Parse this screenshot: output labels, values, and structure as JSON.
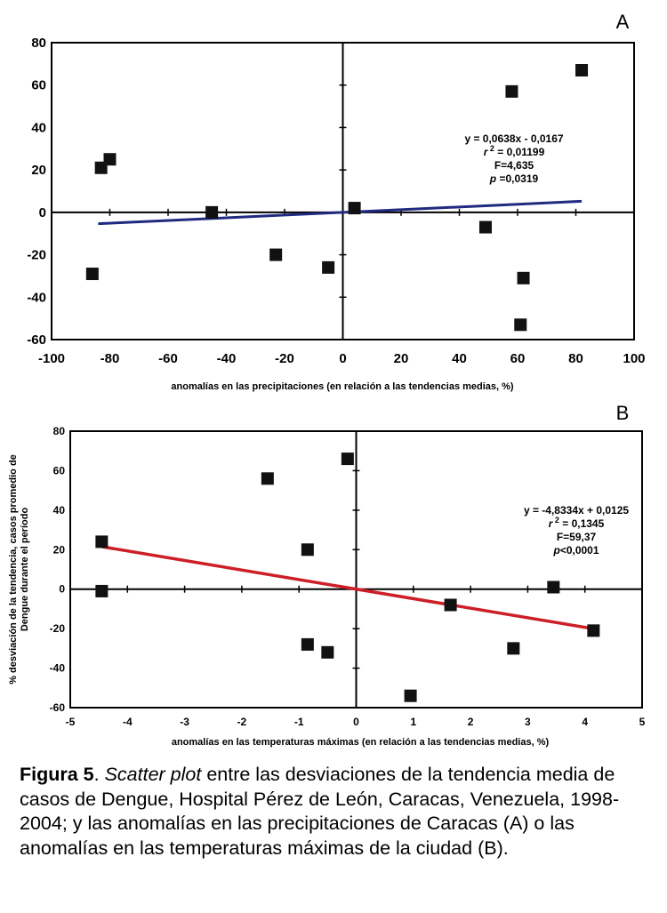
{
  "chart_data": [
    {
      "type": "scatter",
      "panel_label": "A",
      "xlabel": "anomalías en las precipitaciones (en relación a las tendencias medias, %)",
      "ylabel": "",
      "xlim": [
        -100,
        100
      ],
      "ylim": [
        -60,
        80
      ],
      "x_ticks": [
        -100,
        -80,
        -60,
        -40,
        -20,
        0,
        20,
        40,
        60,
        80,
        100
      ],
      "y_ticks": [
        -60,
        -40,
        -20,
        0,
        20,
        40,
        60,
        80
      ],
      "x_tick_labels": [
        "-100",
        "-80",
        "-60",
        "-40",
        "-20",
        "0",
        "20",
        "40",
        "60",
        "80",
        "100"
      ],
      "y_tick_labels": [
        "-60",
        "-40",
        "-20",
        "0",
        "20",
        "40",
        "60",
        "80"
      ],
      "points": [
        {
          "x": -86,
          "y": -29
        },
        {
          "x": -83,
          "y": 21
        },
        {
          "x": -80,
          "y": 25
        },
        {
          "x": -45,
          "y": 0
        },
        {
          "x": -23,
          "y": -20
        },
        {
          "x": -5,
          "y": -26
        },
        {
          "x": 4,
          "y": 2
        },
        {
          "x": 49,
          "y": -7
        },
        {
          "x": 58,
          "y": 57
        },
        {
          "x": 61,
          "y": -53
        },
        {
          "x": 62,
          "y": -31
        },
        {
          "x": 82,
          "y": 67
        }
      ],
      "trendline": {
        "x": [
          -84,
          82
        ],
        "slope": 0.0638,
        "intercept": -0.0167
      },
      "trend_color": "#1f2a80",
      "equation_lines": [
        {
          "text": "y = 0,0638x - 0,0167"
        },
        {
          "prefix": "r",
          "sup": "2",
          "text": " = 0,01199"
        },
        {
          "text": "F=4,635"
        },
        {
          "prefix": "p",
          "text": " =0,0319"
        }
      ]
    },
    {
      "type": "scatter",
      "panel_label": "B",
      "xlabel": "anomalías en las temperaturas máximas (en relación a las tendencias medias, %)",
      "ylabel": "% desviación de la tendencia, casos promedio de Dengue durante el período",
      "xlim": [
        -5,
        5
      ],
      "ylim": [
        -60,
        80
      ],
      "x_ticks": [
        -5,
        -4,
        -3,
        -2,
        -1,
        0,
        1,
        2,
        3,
        4,
        5
      ],
      "y_ticks": [
        -60,
        -40,
        -20,
        0,
        20,
        40,
        60,
        80
      ],
      "x_tick_labels": [
        "-5",
        "-4",
        "-3",
        "-2",
        "-1",
        "0",
        "1",
        "2",
        "3",
        "4",
        "5"
      ],
      "y_tick_labels": [
        "-60",
        "-40",
        "-20",
        "0",
        "20",
        "40",
        "60",
        "80"
      ],
      "points": [
        {
          "x": -4.45,
          "y": 24
        },
        {
          "x": -4.45,
          "y": -1
        },
        {
          "x": -1.55,
          "y": 56
        },
        {
          "x": -0.85,
          "y": 20
        },
        {
          "x": -0.85,
          "y": -28
        },
        {
          "x": -0.5,
          "y": -32
        },
        {
          "x": -0.15,
          "y": 66
        },
        {
          "x": 0.95,
          "y": -54
        },
        {
          "x": 1.65,
          "y": -8
        },
        {
          "x": 2.75,
          "y": -30
        },
        {
          "x": 3.45,
          "y": 1
        },
        {
          "x": 4.15,
          "y": -21
        }
      ],
      "trendline": {
        "x": [
          -4.45,
          4.15
        ],
        "slope": -4.8334,
        "intercept": 0.0125
      },
      "trend_color": "#cc1f26",
      "equation_lines": [
        {
          "text": "y = -4,8334x + 0,0125"
        },
        {
          "prefix": "r",
          "sup": "2",
          "text": " = 0,1345"
        },
        {
          "text": "F=59,37"
        },
        {
          "prefix": "p",
          "text": "<0,0001"
        }
      ]
    }
  ],
  "caption": {
    "label": "Figura 5",
    "after_label": ". ",
    "emph": "Scatter plot",
    "text": " entre las desviaciones de la tendencia media de casos de Dengue, Hospital Pérez de León, Caracas, Venezuela, 1998-2004; y las anomalías en las precipitaciones de Caracas (A) o las anomalías en las temperaturas máximas de la ciudad (B)."
  }
}
